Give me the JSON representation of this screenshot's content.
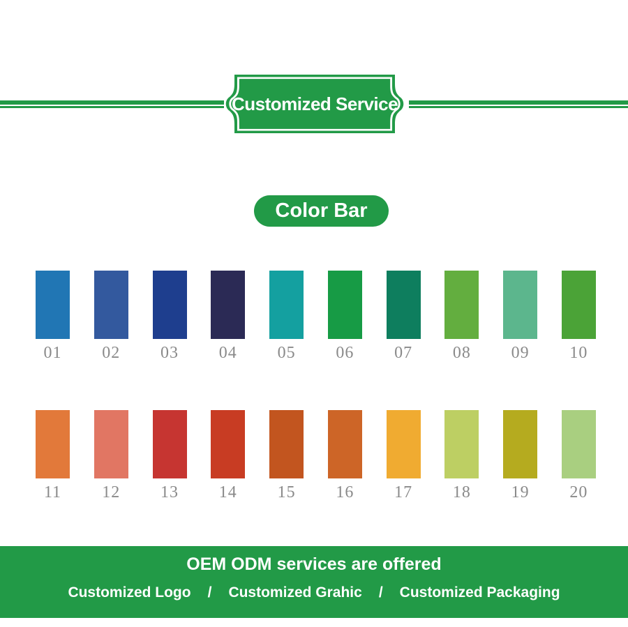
{
  "colors": {
    "brand_green": "#229a47",
    "number_gray": "#8a8a8a"
  },
  "banner": {
    "label": "Customized Service"
  },
  "section_title": {
    "label": "Color Bar"
  },
  "palette": {
    "rows": [
      {
        "swatches": [
          {
            "label": "01",
            "color": "#2176b4"
          },
          {
            "label": "02",
            "color": "#33599e"
          },
          {
            "label": "03",
            "color": "#1e3e8e"
          },
          {
            "label": "04",
            "color": "#2b2a55"
          },
          {
            "label": "05",
            "color": "#14a0a0"
          },
          {
            "label": "06",
            "color": "#179b45"
          },
          {
            "label": "07",
            "color": "#0e7e5e"
          },
          {
            "label": "08",
            "color": "#63ae3f"
          },
          {
            "label": "09",
            "color": "#5cb68d"
          },
          {
            "label": "10",
            "color": "#4ba337"
          }
        ]
      },
      {
        "swatches": [
          {
            "label": "11",
            "color": "#e2793a"
          },
          {
            "label": "12",
            "color": "#e17663"
          },
          {
            "label": "13",
            "color": "#c63531"
          },
          {
            "label": "14",
            "color": "#c83c23"
          },
          {
            "label": "15",
            "color": "#c2551f"
          },
          {
            "label": "16",
            "color": "#cd6527"
          },
          {
            "label": "17",
            "color": "#f0ab31"
          },
          {
            "label": "18",
            "color": "#bdcf63"
          },
          {
            "label": "19",
            "color": "#b5ab1f"
          },
          {
            "label": "20",
            "color": "#a9cf80"
          }
        ]
      }
    ]
  },
  "footer": {
    "title": "OEM ODM services are offered",
    "separator": "/",
    "items": [
      "Customized Logo",
      "Customized Grahic",
      "Customized Packaging"
    ]
  }
}
